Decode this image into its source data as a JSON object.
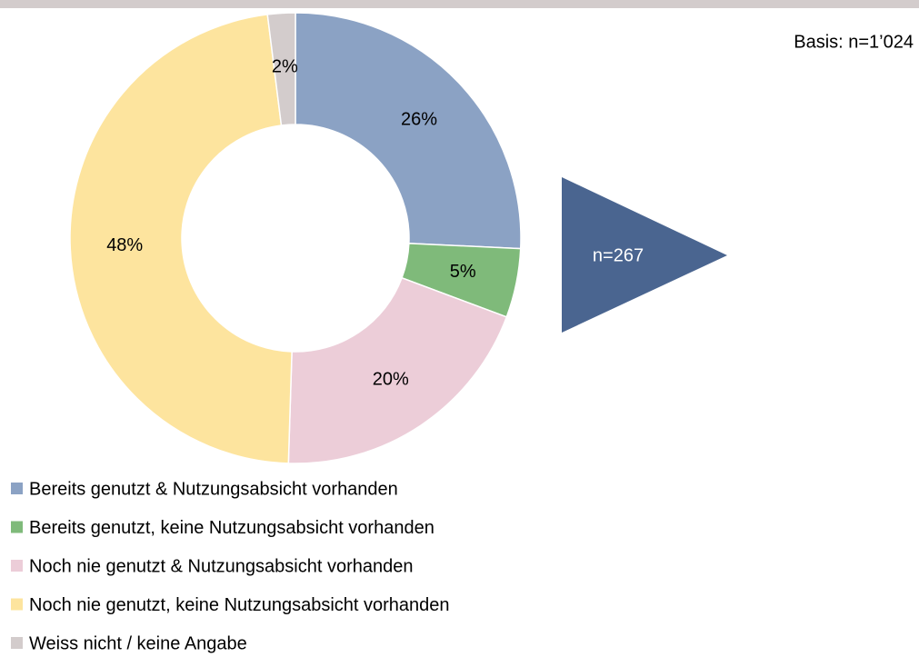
{
  "chart_data": {
    "type": "donut",
    "categories": [
      "Bereits genutzt & Nutzungsabsicht vorhanden",
      "Bereits genutzt, keine Nutzungsabsicht vorhanden",
      "Noch nie genutzt & Nutzungsabsicht vorhanden",
      "Noch nie genutzt, keine Nutzungsabsicht vorhanden",
      "Weiss nicht / keine Angabe"
    ],
    "values": [
      26,
      5,
      20,
      48,
      2
    ],
    "value_labels": [
      "26%",
      "5%",
      "20%",
      "48%",
      "2%"
    ],
    "colors": [
      "#8ba2c4",
      "#7fba7a",
      "#eccdd8",
      "#fde49e",
      "#d3cccc"
    ],
    "annotations": [
      "Basis: n=1’024",
      "n=267"
    ]
  }
}
